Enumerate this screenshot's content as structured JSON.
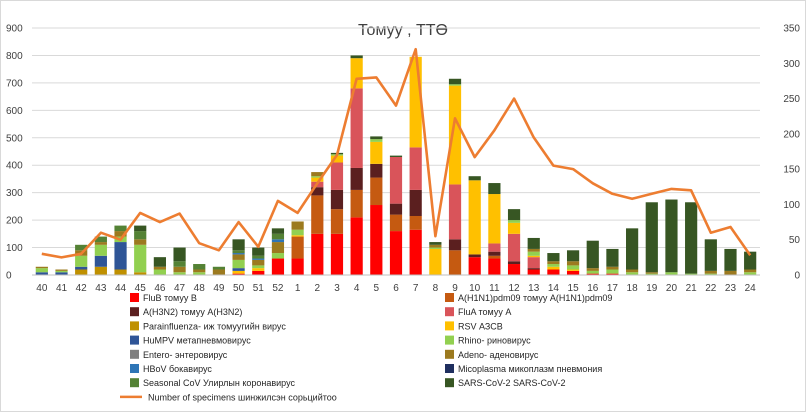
{
  "chart_data": {
    "type": "bar",
    "stacked": true,
    "title": "Томуу , ТТӨ",
    "xlabel": "",
    "ylabel": "",
    "ylim": [
      0,
      900
    ],
    "y2lim": [
      0,
      350
    ],
    "yticks": [
      "0",
      "100",
      "200",
      "300",
      "400",
      "500",
      "600",
      "700",
      "800",
      "900"
    ],
    "y2ticks": [
      "0",
      "50",
      "100",
      "150",
      "200",
      "250",
      "300",
      "350"
    ],
    "grid": true,
    "legend_position": "bottom",
    "categories": [
      "40",
      "41",
      "42",
      "43",
      "44",
      "45",
      "46",
      "47",
      "48",
      "49",
      "50",
      "51",
      "52",
      "1",
      "2",
      "3",
      "4",
      "5",
      "6",
      "7",
      "8",
      "9",
      "10",
      "11",
      "12",
      "13",
      "14",
      "15",
      "16",
      "17",
      "18",
      "19",
      "20",
      "21",
      "22",
      "23",
      "24"
    ],
    "series": [
      {
        "name": "FluB томуу B",
        "color": "#ff0000",
        "values": [
          0,
          0,
          0,
          0,
          0,
          0,
          0,
          0,
          0,
          0,
          5,
          15,
          60,
          60,
          150,
          150,
          210,
          255,
          160,
          165,
          0,
          0,
          65,
          60,
          40,
          20,
          20,
          15,
          5,
          5,
          0,
          0,
          0,
          0,
          0,
          0,
          0
        ]
      },
      {
        "name": "A(H1N1)pdm09 томуу A(H1N1)pdm09",
        "color": "#c55a11",
        "values": [
          0,
          0,
          0,
          0,
          0,
          0,
          0,
          0,
          0,
          0,
          0,
          0,
          0,
          80,
          140,
          90,
          100,
          100,
          60,
          50,
          0,
          90,
          0,
          10,
          0,
          0,
          0,
          0,
          0,
          0,
          0,
          0,
          0,
          0,
          0,
          0,
          0
        ]
      },
      {
        "name": "A(H3N2) томуу A(H3N2)",
        "color": "#5b1f1f",
        "values": [
          0,
          0,
          0,
          0,
          0,
          0,
          0,
          0,
          0,
          0,
          0,
          0,
          0,
          0,
          30,
          70,
          80,
          50,
          40,
          95,
          0,
          40,
          10,
          15,
          10,
          5,
          0,
          0,
          0,
          0,
          0,
          0,
          0,
          0,
          0,
          0,
          0
        ]
      },
      {
        "name": "FluA томуу A",
        "color": "#d9545a",
        "values": [
          0,
          0,
          0,
          0,
          0,
          0,
          0,
          0,
          0,
          0,
          0,
          0,
          0,
          0,
          20,
          100,
          290,
          0,
          170,
          155,
          0,
          200,
          0,
          30,
          100,
          40,
          0,
          0,
          0,
          0,
          0,
          0,
          0,
          0,
          0,
          0,
          0
        ]
      },
      {
        "name": "Parainfluenza- иж томуугийн вирус",
        "color": "#bf9000",
        "values": [
          0,
          0,
          20,
          30,
          20,
          10,
          0,
          0,
          0,
          0,
          0,
          0,
          0,
          0,
          0,
          0,
          0,
          0,
          0,
          0,
          0,
          0,
          0,
          0,
          0,
          0,
          0,
          0,
          0,
          0,
          0,
          0,
          0,
          0,
          0,
          0,
          0
        ]
      },
      {
        "name": "RSV АЗСВ",
        "color": "#ffc000",
        "values": [
          0,
          0,
          0,
          0,
          0,
          0,
          0,
          0,
          0,
          0,
          10,
          10,
          0,
          5,
          15,
          25,
          110,
          80,
          0,
          330,
          95,
          360,
          270,
          180,
          40,
          5,
          10,
          5,
          0,
          0,
          0,
          0,
          0,
          0,
          0,
          0,
          0
        ]
      },
      {
        "name": "HuMPV метапневмовирус",
        "color": "#2f5597",
        "values": [
          10,
          10,
          10,
          40,
          100,
          0,
          0,
          0,
          0,
          0,
          10,
          0,
          0,
          0,
          0,
          0,
          0,
          0,
          0,
          0,
          0,
          0,
          0,
          0,
          0,
          0,
          0,
          0,
          0,
          0,
          0,
          0,
          0,
          0,
          0,
          0,
          0
        ]
      },
      {
        "name": "Rhino- риновирус",
        "color": "#92d050",
        "values": [
          15,
          5,
          40,
          40,
          20,
          100,
          20,
          10,
          10,
          0,
          30,
          10,
          20,
          20,
          5,
          5,
          0,
          10,
          0,
          0,
          5,
          5,
          0,
          0,
          10,
          15,
          10,
          15,
          10,
          15,
          10,
          5,
          10,
          5,
          5,
          0,
          10
        ]
      },
      {
        "name": "Entero- энтеровирус",
        "color": "#7f7f7f",
        "values": [
          0,
          0,
          0,
          0,
          0,
          0,
          0,
          0,
          0,
          0,
          0,
          0,
          0,
          0,
          0,
          0,
          0,
          0,
          0,
          0,
          0,
          0,
          0,
          0,
          0,
          0,
          0,
          0,
          0,
          0,
          0,
          0,
          0,
          0,
          0,
          0,
          0
        ]
      },
      {
        "name": "Adeno- аденовирус",
        "color": "#9c7a1f",
        "values": [
          5,
          5,
          20,
          10,
          20,
          20,
          10,
          20,
          10,
          20,
          20,
          20,
          40,
          30,
          15,
          0,
          0,
          0,
          0,
          0,
          10,
          0,
          0,
          0,
          0,
          10,
          10,
          15,
          10,
          10,
          10,
          5,
          0,
          0,
          10,
          15,
          10
        ]
      },
      {
        "name": "HBoV бокавирус",
        "color": "#2e75b6",
        "values": [
          0,
          0,
          0,
          0,
          0,
          0,
          0,
          0,
          0,
          0,
          5,
          5,
          10,
          0,
          0,
          0,
          0,
          0,
          0,
          0,
          0,
          0,
          0,
          0,
          0,
          0,
          0,
          0,
          0,
          0,
          0,
          0,
          0,
          0,
          0,
          0,
          0
        ]
      },
      {
        "name": "Micoplasma микоплазм пневмония",
        "color": "#1f2f5f",
        "values": [
          0,
          0,
          0,
          0,
          0,
          0,
          0,
          0,
          0,
          0,
          0,
          0,
          0,
          0,
          0,
          0,
          0,
          0,
          0,
          0,
          0,
          0,
          0,
          0,
          0,
          0,
          0,
          0,
          0,
          0,
          0,
          0,
          0,
          0,
          0,
          0,
          0
        ]
      },
      {
        "name": "Seasonal CoV Улирлын коронавирус",
        "color": "#548235",
        "values": [
          0,
          0,
          20,
          20,
          20,
          30,
          0,
          20,
          20,
          10,
          10,
          10,
          20,
          0,
          0,
          0,
          0,
          0,
          0,
          0,
          0,
          0,
          0,
          0,
          0,
          0,
          0,
          0,
          0,
          0,
          0,
          0,
          0,
          0,
          0,
          0,
          0
        ]
      },
      {
        "name": "SARS-CoV-2 SARS-CoV-2",
        "color": "#375623",
        "values": [
          0,
          0,
          0,
          0,
          0,
          20,
          35,
          50,
          0,
          0,
          40,
          30,
          20,
          0,
          0,
          5,
          10,
          10,
          5,
          0,
          10,
          20,
          15,
          40,
          40,
          40,
          30,
          40,
          100,
          65,
          150,
          255,
          265,
          260,
          115,
          80,
          65
        ]
      }
    ],
    "line": {
      "name": "Number of specimens шинжилсэн сорьцийтоо",
      "color": "#ed7d31",
      "axis": "secondary",
      "values": [
        30,
        25,
        30,
        60,
        50,
        88,
        75,
        87,
        45,
        35,
        75,
        40,
        105,
        88,
        130,
        170,
        278,
        280,
        240,
        320,
        55,
        222,
        167,
        205,
        250,
        195,
        155,
        150,
        130,
        115,
        108,
        115,
        122,
        120,
        60,
        68,
        28
      ]
    }
  }
}
